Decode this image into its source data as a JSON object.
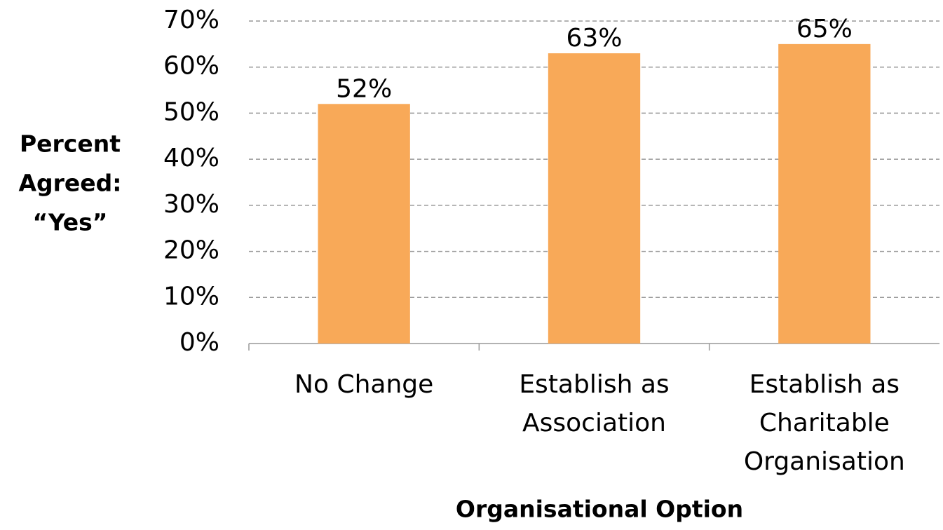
{
  "chart_data": {
    "type": "bar",
    "x_label": "Organisational Option",
    "y_label": [
      "Percent",
      "Agreed:",
      "“Yes”"
    ],
    "categories": [
      "No Change",
      "Establish as Association",
      "Establish as Charitable Organisation"
    ],
    "values": [
      52,
      63,
      65
    ],
    "value_labels": [
      "52%",
      "63%",
      "65%"
    ],
    "color": "#f8a958",
    "ylim": [
      0,
      70
    ],
    "yticks": [
      {
        "value": 0,
        "label": "0%"
      },
      {
        "value": 10,
        "label": "10%"
      },
      {
        "value": 20,
        "label": "20%"
      },
      {
        "value": 30,
        "label": "30%"
      },
      {
        "value": 40,
        "label": "40%"
      },
      {
        "value": 50,
        "label": "50%"
      },
      {
        "value": 60,
        "label": "60%"
      },
      {
        "value": 70,
        "label": "70%"
      }
    ],
    "grid": true
  }
}
